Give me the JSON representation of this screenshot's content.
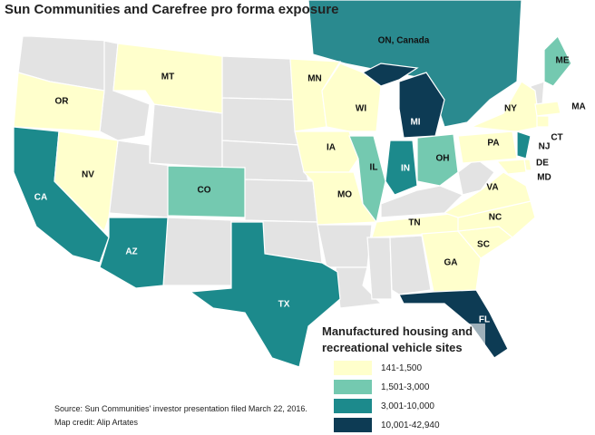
{
  "title": "Sun Communities and Carefree pro forma exposure",
  "regions": [
    {
      "label": "ON, Canada",
      "color": "#2a8a8f"
    },
    {
      "label": "OR",
      "color": "#ffffcc"
    },
    {
      "label": "CA",
      "color": "#1c8a8c"
    },
    {
      "label": "NV",
      "color": "#ffffcc"
    },
    {
      "label": "MT",
      "color": "#ffffcc"
    },
    {
      "label": "CO",
      "color": "#74c9b0"
    },
    {
      "label": "AZ",
      "color": "#1c8a8c"
    },
    {
      "label": "TX",
      "color": "#1c8a8c"
    },
    {
      "label": "MN",
      "color": "#ffffcc"
    },
    {
      "label": "IA",
      "color": "#ffffcc"
    },
    {
      "label": "MO",
      "color": "#ffffcc"
    },
    {
      "label": "WI",
      "color": "#ffffcc"
    },
    {
      "label": "IL",
      "color": "#74c9b0"
    },
    {
      "label": "IN",
      "color": "#1c8a8c"
    },
    {
      "label": "MI",
      "color": "#0d3b54"
    },
    {
      "label": "OH",
      "color": "#74c9b0"
    },
    {
      "label": "TN",
      "color": "#ffffcc"
    },
    {
      "label": "GA",
      "color": "#ffffcc"
    },
    {
      "label": "FL",
      "color": "#0d3b54"
    },
    {
      "label": "SC",
      "color": "#ffffcc"
    },
    {
      "label": "NC",
      "color": "#ffffcc"
    },
    {
      "label": "VA",
      "color": "#ffffcc"
    },
    {
      "label": "PA",
      "color": "#ffffcc"
    },
    {
      "label": "NY",
      "color": "#ffffcc"
    },
    {
      "label": "NJ",
      "color": "#1c8a8c"
    },
    {
      "label": "DE",
      "color": "#ffffcc"
    },
    {
      "label": "MD",
      "color": "#ffffcc"
    },
    {
      "label": "ME",
      "color": "#74c9b0"
    },
    {
      "label": "MA",
      "color": "#ffffcc"
    },
    {
      "label": "CT",
      "color": "#ffffcc"
    }
  ],
  "legend": {
    "title": "Manufactured housing and recreational vehicle sites",
    "items": [
      {
        "label": "141-1,500",
        "color": "#ffffcc"
      },
      {
        "label": "1,501-3,000",
        "color": "#74c9b0"
      },
      {
        "label": "3,001-10,000",
        "color": "#1c8a8c"
      },
      {
        "label": "10,001-42,940",
        "color": "#0d3b54"
      }
    ]
  },
  "source": "Source: Sun Communities' investor presentation filed March 22, 2016.",
  "credit": "Map credit: Alip Artates"
}
